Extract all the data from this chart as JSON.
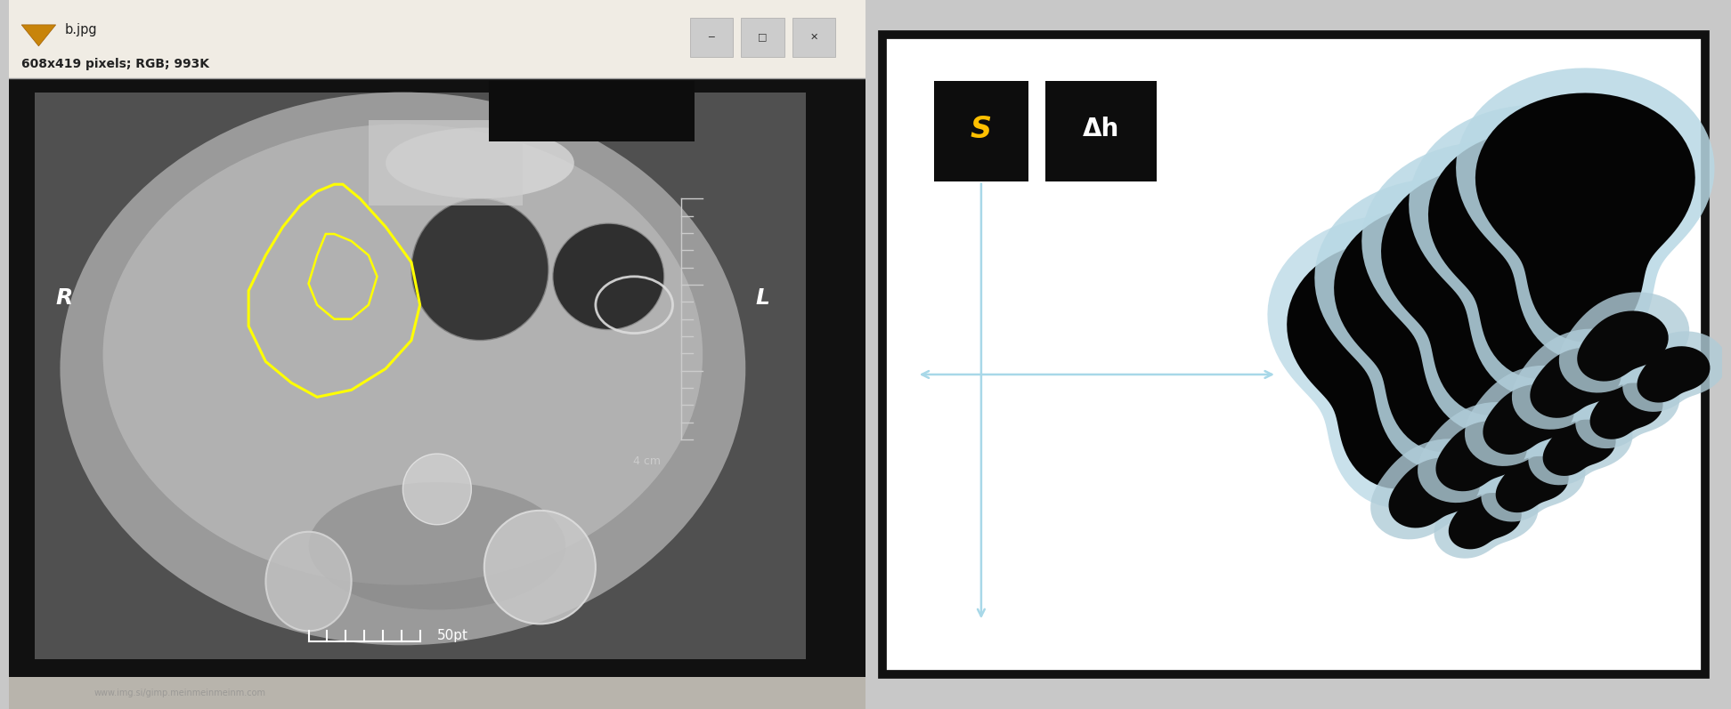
{
  "fig_width": 19.44,
  "fig_height": 7.97,
  "dpi": 100,
  "bg_color": "#c8c8c8",
  "left_panel": {
    "title_bar_color": "#f0ece4",
    "window_bg": "#1a1a1a",
    "header_text1": "b.jpg",
    "header_text2": "608x419 pixels; RGB; 993K",
    "yellow_outline_color": "#ffff00",
    "label_R": "R",
    "label_L": "L",
    "scale_label": "50pt",
    "ruler_label": "4 cm",
    "dark_patch_color": "#111111",
    "status_bar_color": "#b8b4ac"
  },
  "right_panel": {
    "border_color": "#111111",
    "bg_color": "#ffffff",
    "label_S": "S",
    "label_Dh": "Δh",
    "label_S_color": "#ffc000",
    "box_bg": "#0d0d0d",
    "arrow_color": "#a8d8e8"
  }
}
